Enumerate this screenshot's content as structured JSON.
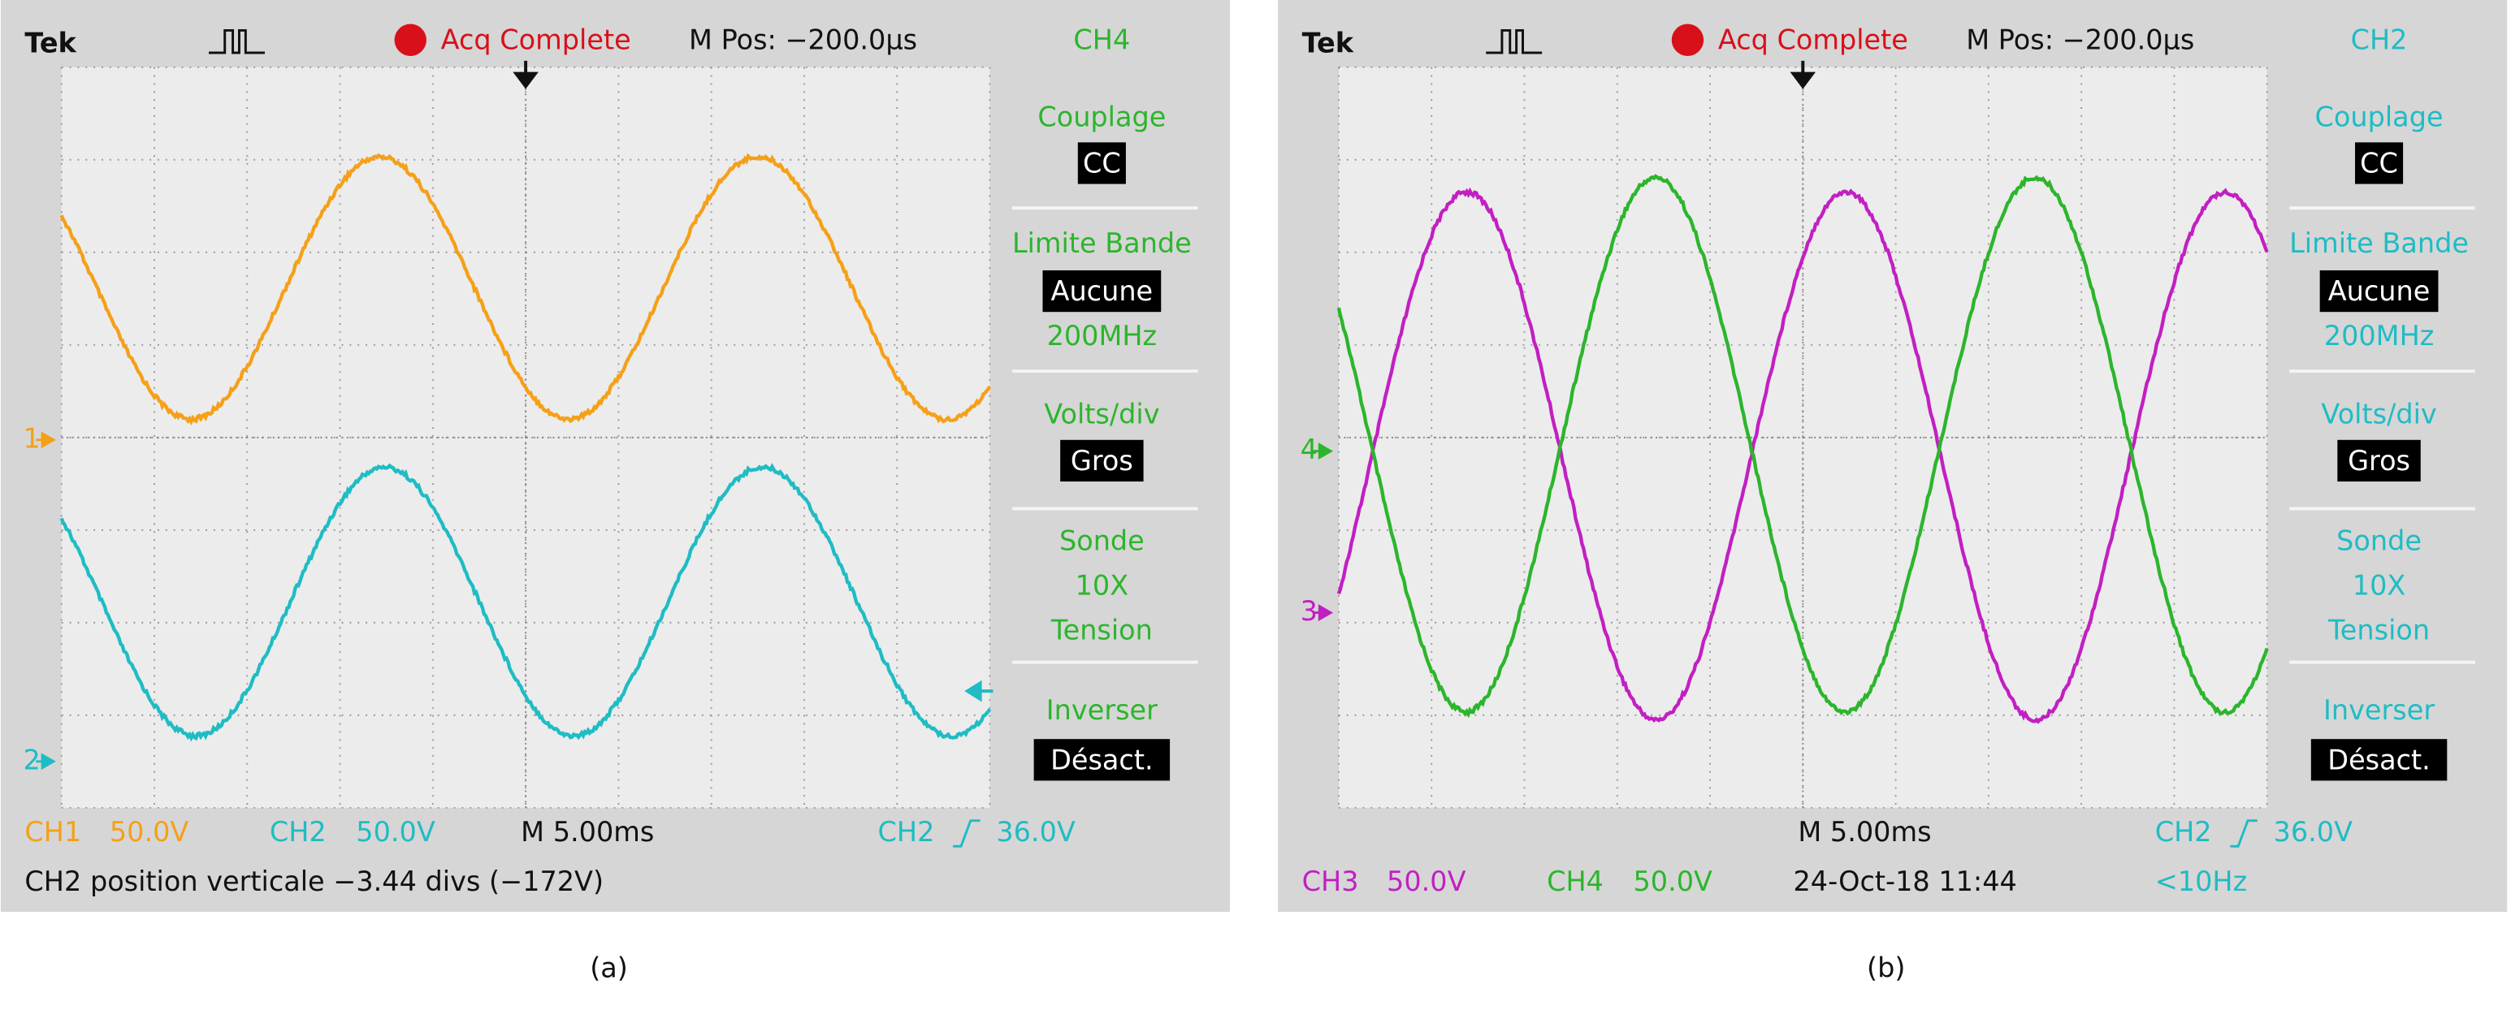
{
  "panels": [
    {
      "brand": "Tek",
      "status": "Acq Complete",
      "position": "M Pos: −200.0µs",
      "menu": {
        "channel": "CH4",
        "items": [
          {
            "label": "Couplage",
            "values": [
              "CC"
            ]
          },
          {
            "label": "Limite Bande",
            "values": [
              "Aucune",
              "200MHz"
            ]
          },
          {
            "label": "Volts/div",
            "values": [
              "Gros"
            ]
          },
          {
            "label": "Sonde",
            "values": [
              "10X",
              "Tension"
            ]
          },
          {
            "label": "Inverser",
            "values": [
              "Désact."
            ]
          }
        ]
      },
      "markers": [
        "1",
        "2"
      ],
      "readouts": [
        [
          "CH1",
          "50.0V",
          "CH2",
          "50.0V",
          "M 5.00ms",
          "CH2",
          "36.0V"
        ],
        [
          "CH2 position verticale −3.44 divs (−172V)"
        ]
      ],
      "caption": "(a)"
    },
    {
      "brand": "Tek",
      "status": "Acq Complete",
      "position": "M Pos: −200.0µs",
      "menu": {
        "channel": "CH2",
        "items": [
          {
            "label": "Couplage",
            "values": [
              "CC"
            ]
          },
          {
            "label": "Limite Bande",
            "values": [
              "Aucune",
              "200MHz"
            ]
          },
          {
            "label": "Volts/div",
            "values": [
              "Gros"
            ]
          },
          {
            "label": "Sonde",
            "values": [
              "10X",
              "Tension"
            ]
          },
          {
            "label": "Inverser",
            "values": [
              "Désact."
            ]
          }
        ]
      },
      "markers": [
        "4",
        "3"
      ],
      "readouts": [
        [
          "M 5.00ms",
          "CH2",
          "36.0V"
        ],
        [
          "CH3",
          "50.0V",
          "CH4",
          "50.0V",
          "24-Oct-18 11:44",
          "<10Hz"
        ]
      ],
      "caption": "(b)"
    }
  ]
}
